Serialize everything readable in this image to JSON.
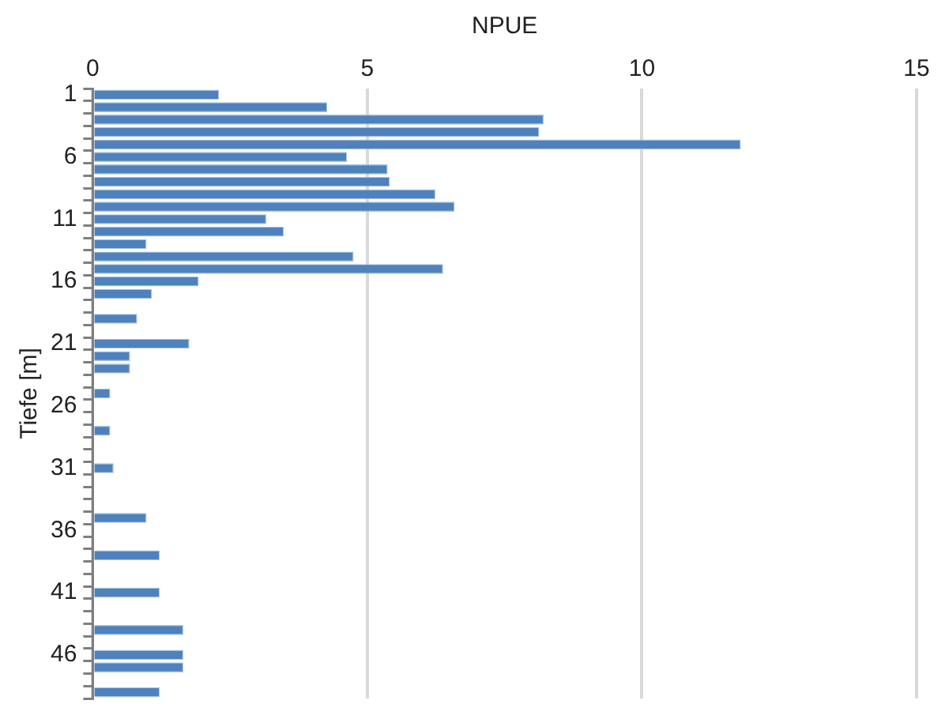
{
  "chart_data": {
    "type": "bar",
    "orientation": "horizontal",
    "xlabel": "NPUE",
    "ylabel": "Tiefe [m]",
    "categories": [
      "1",
      null,
      null,
      null,
      null,
      "6",
      null,
      null,
      null,
      null,
      "11",
      null,
      null,
      null,
      null,
      "16",
      null,
      null,
      null,
      null,
      "21",
      null,
      null,
      null,
      null,
      "26",
      null,
      null,
      null,
      null,
      "31",
      null,
      null,
      null,
      null,
      "36",
      null,
      null,
      null,
      null,
      "41",
      null,
      null,
      null,
      null,
      "46",
      null,
      null,
      null
    ],
    "values": [
      2.3,
      4.27,
      8.21,
      8.13,
      11.8,
      4.63,
      5.37,
      5.41,
      6.24,
      6.59,
      3.16,
      3.48,
      0.98,
      4.75,
      6.38,
      1.93,
      1.08,
      null,
      0.81,
      null,
      1.76,
      0.68,
      0.68,
      null,
      0.32,
      null,
      null,
      0.32,
      null,
      null,
      0.38,
      null,
      null,
      null,
      0.98,
      null,
      null,
      1.22,
      null,
      null,
      1.22,
      null,
      null,
      1.65,
      null,
      1.65,
      1.65,
      null,
      1.22
    ],
    "color": "#4f81bd",
    "xlim": [
      0,
      15
    ],
    "xticks": [
      0,
      5,
      10,
      15
    ],
    "grid": "x"
  }
}
